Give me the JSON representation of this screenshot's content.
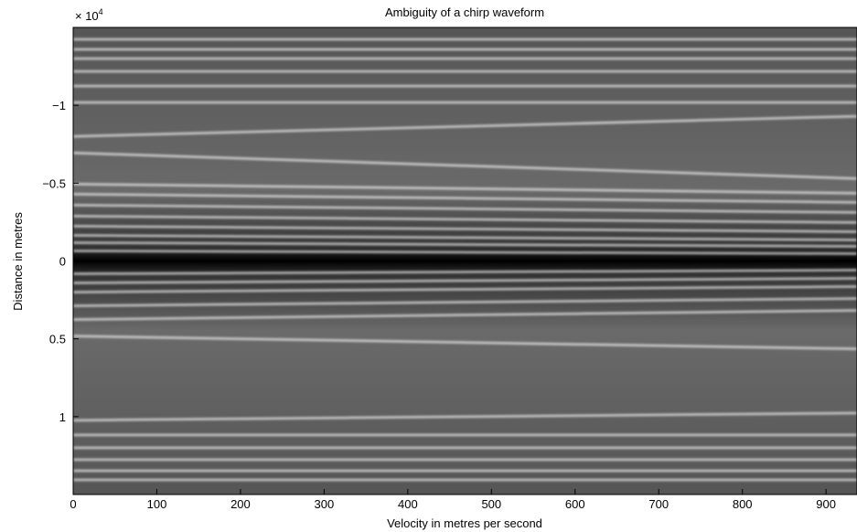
{
  "chart_data": {
    "type": "image",
    "title": "Ambiguity of a chirp waveform",
    "xlabel": "Velocity in metres per second",
    "ylabel": "Distance in metres",
    "y_multiplier": {
      "base": "× 10",
      "exponent": "4"
    },
    "xlim": [
      0,
      937
    ],
    "ylim": [
      -15000,
      15000
    ],
    "y_reversed": true,
    "xticks": [
      0,
      100,
      200,
      300,
      400,
      500,
      600,
      700,
      800,
      900
    ],
    "yticks": [
      {
        "value": -10000,
        "label": "−1"
      },
      {
        "value": -5000,
        "label": "−0.5"
      },
      0,
      {
        "value": 5000,
        "label": "0.5"
      },
      {
        "value": 10000,
        "label": "1"
      }
    ],
    "ridge_color": "#ffffff",
    "ridges": [
      {
        "from": -14235,
        "to": -14235
      },
      {
        "from": -13588,
        "to": -13588
      },
      {
        "from": -13000,
        "to": -13000
      },
      {
        "from": -12176,
        "to": -12176
      },
      {
        "from": -11235,
        "to": -11235
      },
      {
        "from": -10176,
        "to": -10176
      },
      {
        "from": -8000,
        "to": -9294
      },
      {
        "from": -6941,
        "to": -5294
      },
      {
        "from": -4941,
        "to": -4353
      },
      {
        "from": -4294,
        "to": -3765
      },
      {
        "from": -3588,
        "to": -3118
      },
      {
        "from": -2882,
        "to": -2471
      },
      {
        "from": -2235,
        "to": -1882
      },
      {
        "from": -1647,
        "to": -1353
      },
      {
        "from": -1176,
        "to": -941
      },
      {
        "from": -647,
        "to": -471
      },
      {
        "from": 824,
        "to": 588
      },
      {
        "from": 1412,
        "to": 1118
      },
      {
        "from": 2000,
        "to": 1647
      },
      {
        "from": 2882,
        "to": 2412
      },
      {
        "from": 3765,
        "to": 3176
      },
      {
        "from": 4824,
        "to": 5647
      },
      {
        "from": 10235,
        "to": 9765
      },
      {
        "from": 11176,
        "to": 11176
      },
      {
        "from": 12000,
        "to": 12000
      },
      {
        "from": 12765,
        "to": 12765
      },
      {
        "from": 13471,
        "to": 13471
      },
      {
        "from": 14059,
        "to": 14059
      }
    ]
  }
}
